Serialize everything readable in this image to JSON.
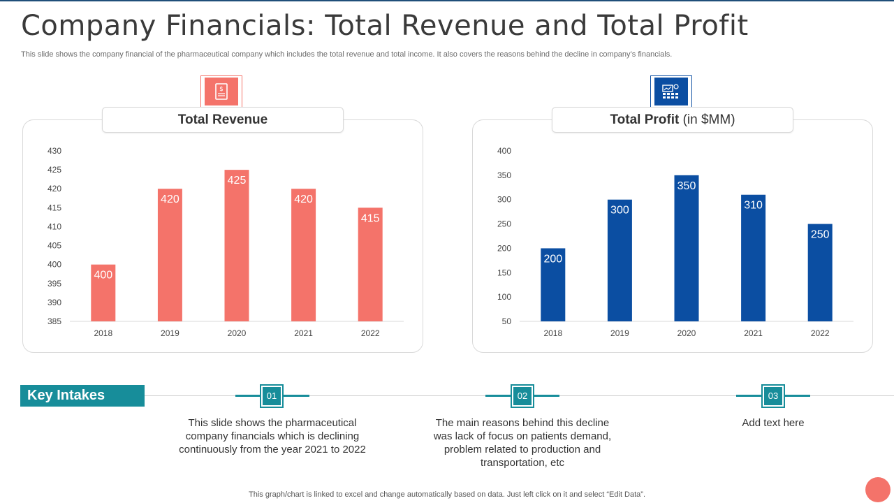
{
  "slide": {
    "title": "Company Financials: Total Revenue and Total Profit",
    "subtitle": "This slide shows the company financial of the pharmaceutical company which includes the total revenue and total income. It also covers the reasons behind the decline in company’s financials.",
    "footer": "This graph/chart is linked to excel and change automatically based on data. Just left click on it and select “Edit Data”."
  },
  "revenue_panel": {
    "title_bold": "Total Revenue",
    "title_unit": ""
  },
  "profit_panel": {
    "title_bold": "Total Profit",
    "title_unit": " (in $MM)"
  },
  "key_intakes": {
    "heading": "Key Intakes",
    "steps": [
      {
        "number": "01",
        "text": "This slide shows the pharmaceutical company financials which is declining continuously  from the year 2021 to 2022"
      },
      {
        "number": "02",
        "text": "The main reasons behind this decline was lack of focus on patients demand, problem related to production and transportation, etc"
      },
      {
        "number": "03",
        "text": "Add text here"
      }
    ]
  },
  "colors": {
    "revenue": "#f4736a",
    "profit": "#0b4ea2",
    "accent": "#178d9a"
  },
  "chart_data": [
    {
      "type": "bar",
      "title": "Total Revenue",
      "categories": [
        "2018",
        "2019",
        "2020",
        "2021",
        "2022"
      ],
      "values": [
        400,
        420,
        425,
        420,
        415
      ],
      "ylim": [
        385,
        430
      ],
      "yticks": [
        385,
        390,
        395,
        400,
        405,
        410,
        415,
        420,
        425,
        430
      ],
      "data_labels": true,
      "grid": false,
      "color": "#f4736a"
    },
    {
      "type": "bar",
      "title": "Total Profit (in $MM)",
      "categories": [
        "2018",
        "2019",
        "2020",
        "2021",
        "2022"
      ],
      "values": [
        200,
        300,
        350,
        310,
        250
      ],
      "ylim": [
        50,
        400
      ],
      "yticks": [
        50,
        100,
        150,
        200,
        250,
        300,
        350,
        400
      ],
      "data_labels": true,
      "grid": false,
      "color": "#0b4ea2"
    }
  ]
}
